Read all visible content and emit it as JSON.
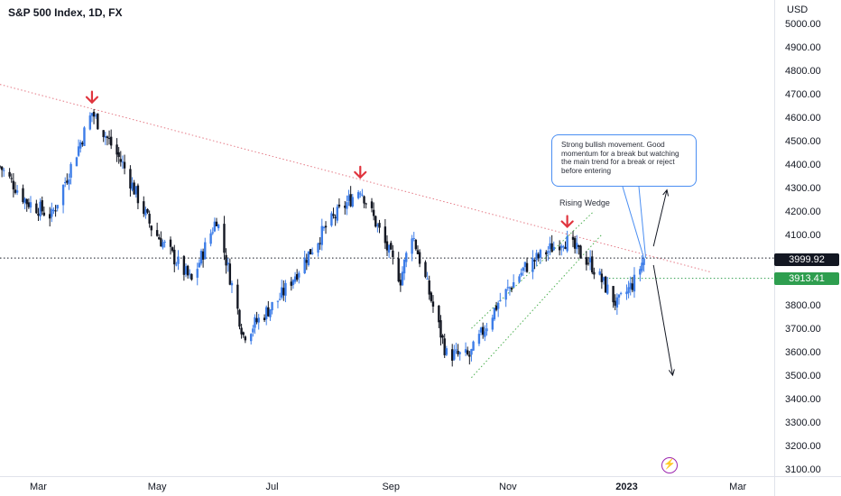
{
  "header": {
    "title": "S&P 500 Index, 1D, FX",
    "currency": "USD"
  },
  "annotations": {
    "note": "Strong bullish movement. Good momentum for a break but watching the main trend for a break or reject before entering",
    "wedge_label": "Rising Wedge"
  },
  "price_tags": {
    "last": "3999.92",
    "level": "3913.41"
  },
  "colors": {
    "up": "#3d7de8",
    "down": "#131722",
    "arrow_red": "#e0353e",
    "trendline": "#e57a86",
    "channel": "#4caf50",
    "note_border": "#4a8ef2",
    "level_tag": "#2e9e4f",
    "bolt": "#9c27b0"
  },
  "icons": {
    "bolt": "lightning-icon"
  },
  "chart_data": {
    "type": "candlestick",
    "y_axis": {
      "side": "right",
      "range": [
        3070,
        5100
      ],
      "ticks": [
        5000,
        4900,
        4800,
        4700,
        4600,
        4500,
        4400,
        4300,
        4200,
        4100,
        4000,
        3900,
        3800,
        3700,
        3600,
        3500,
        3400,
        3300,
        3200,
        3100
      ],
      "tick_labels": [
        "5000.00",
        "4900.00",
        "4800.00",
        "4700.00",
        "4600.00",
        "4500.00",
        "4400.00",
        "4300.00",
        "4200.00",
        "4100.00",
        "4000.00",
        "3900.00",
        "3800.00",
        "3700.00",
        "3600.00",
        "3500.00",
        "3400.00",
        "3300.00",
        "3200.00",
        "3100.00"
      ]
    },
    "x_axis": {
      "range": [
        "2022-02-09",
        "2023-03-20"
      ],
      "ticks": [
        {
          "date": "2022-03-01",
          "label": "Mar",
          "bold": false
        },
        {
          "date": "2022-05-02",
          "label": "May",
          "bold": false
        },
        {
          "date": "2022-07-01",
          "label": "Jul",
          "bold": false
        },
        {
          "date": "2022-09-01",
          "label": "Sep",
          "bold": false
        },
        {
          "date": "2022-11-01",
          "label": "Nov",
          "bold": false
        },
        {
          "date": "2023-01-02",
          "label": "2023",
          "bold": true
        },
        {
          "date": "2023-03-01",
          "label": "Mar",
          "bold": false
        }
      ]
    },
    "series": [
      {
        "date": "2022-02-09",
        "close": 4390
      },
      {
        "date": "2022-02-23",
        "close": 4240
      },
      {
        "date": "2022-03-08",
        "close": 4180
      },
      {
        "date": "2022-03-29",
        "close": 4620
      },
      {
        "date": "2022-04-14",
        "close": 4400
      },
      {
        "date": "2022-04-29",
        "close": 4130
      },
      {
        "date": "2022-05-20",
        "close": 3900
      },
      {
        "date": "2022-06-02",
        "close": 4170
      },
      {
        "date": "2022-06-16",
        "close": 3670
      },
      {
        "date": "2022-07-05",
        "close": 3830
      },
      {
        "date": "2022-07-29",
        "close": 4130
      },
      {
        "date": "2022-08-16",
        "close": 4300
      },
      {
        "date": "2022-09-06",
        "close": 3910
      },
      {
        "date": "2022-09-12",
        "close": 4110
      },
      {
        "date": "2022-09-30",
        "close": 3590
      },
      {
        "date": "2022-10-12",
        "close": 3580
      },
      {
        "date": "2022-10-27",
        "close": 3810
      },
      {
        "date": "2022-11-10",
        "close": 3960
      },
      {
        "date": "2022-11-30",
        "close": 4080
      },
      {
        "date": "2022-12-14",
        "close": 3980
      },
      {
        "date": "2022-12-28",
        "close": 3800
      },
      {
        "date": "2023-01-06",
        "close": 3900
      },
      {
        "date": "2023-01-11",
        "close": 3999.92
      }
    ],
    "lines": [
      {
        "name": "downtrend",
        "from": {
          "date": "2022-02-09",
          "value": 4740
        },
        "to": {
          "date": "2023-02-15",
          "value": 3940
        },
        "style": "dotted"
      },
      {
        "name": "last-price",
        "value": 3999.92,
        "style": "dotted"
      },
      {
        "name": "support",
        "value": 3913.41,
        "style": "dotted"
      },
      {
        "name": "wedge-lower",
        "from": {
          "date": "2022-10-13",
          "value": 3490
        },
        "to": {
          "date": "2022-12-20",
          "value": 4100
        },
        "style": "dotted"
      },
      {
        "name": "wedge-upper",
        "from": {
          "date": "2022-10-13",
          "value": 3700
        },
        "to": {
          "date": "2022-12-16",
          "value": 4200
        },
        "style": "dotted"
      }
    ],
    "markers": [
      {
        "type": "down-arrow",
        "date": "2022-03-29",
        "value": 4640
      },
      {
        "type": "down-arrow",
        "date": "2022-08-16",
        "value": 4320
      },
      {
        "type": "down-arrow",
        "date": "2022-12-02",
        "value": 4110
      }
    ],
    "projection_arrows": [
      {
        "from": {
          "date": "2023-01-16",
          "value": 4050
        },
        "to": {
          "date": "2023-01-23",
          "value": 4290
        }
      },
      {
        "from": {
          "date": "2023-01-16",
          "value": 3970
        },
        "to": {
          "date": "2023-01-26",
          "value": 3500
        }
      }
    ]
  }
}
